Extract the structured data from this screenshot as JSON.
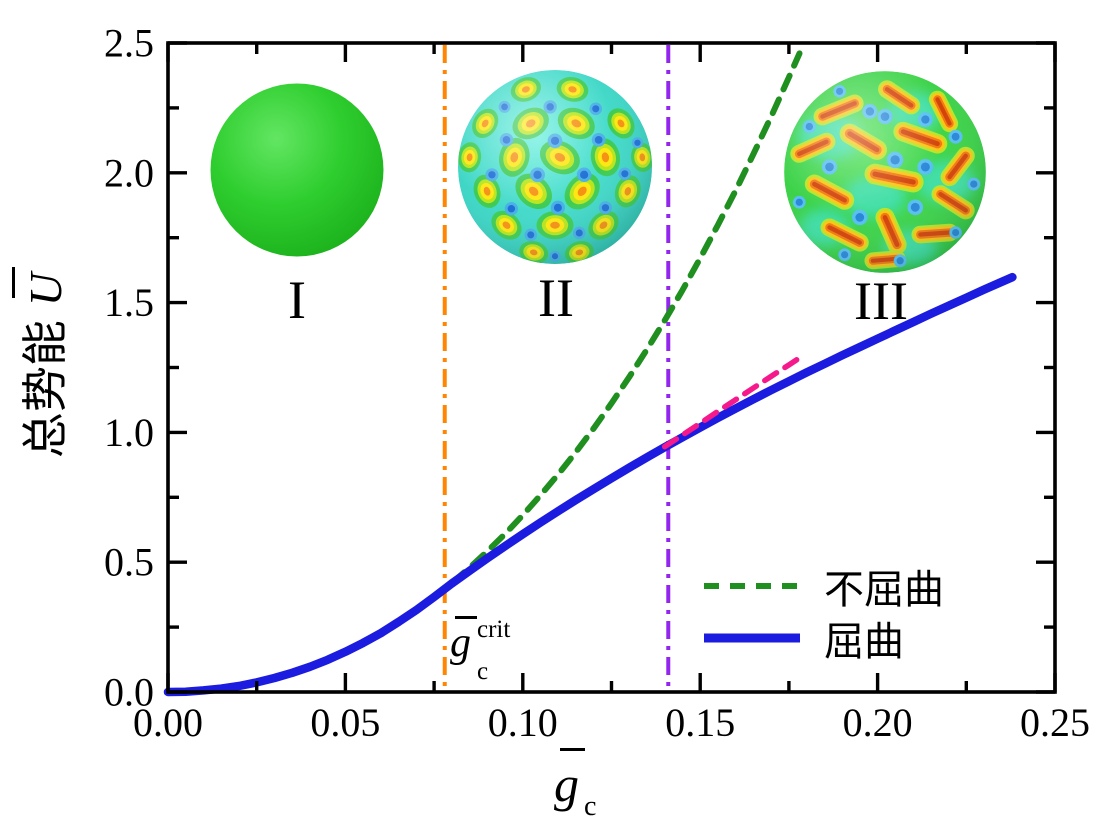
{
  "figure": {
    "background": "#ffffff"
  },
  "axes": {
    "y_label_cn": "总势能",
    "y_label_symbol": "U",
    "x_label_symbol": "g",
    "x_label_sub": "c"
  },
  "annotations": {
    "crit": {
      "base": "g",
      "sub": "c",
      "sup": "crit"
    }
  },
  "insets": [
    {
      "label": "I",
      "description": "smooth-green-sphere"
    },
    {
      "label": "II",
      "description": "hexagonal-dimple-pattern-sphere"
    },
    {
      "label": "III",
      "description": "labyrinth-stripe-pattern-sphere"
    }
  ],
  "legend": {
    "entries": [
      {
        "label": "不屈曲",
        "color": "#1f8f1f",
        "line_style": "dashed"
      },
      {
        "label": "屈曲",
        "color": "#1c1ce0",
        "line_style": "solid"
      }
    ]
  },
  "chart_data": {
    "type": "line",
    "title": "",
    "xlabel": "ḡc",
    "ylabel": "总势能 Ū",
    "xlim": [
      0,
      0.25
    ],
    "ylim": [
      0,
      2.5
    ],
    "grid": false,
    "legend_position": "inside lower right",
    "x_major_ticks": {
      "values": [
        0,
        0.05,
        0.1,
        0.15,
        0.2,
        0.25
      ],
      "labels": [
        "0.00",
        "0.05",
        "0.10",
        "0.15",
        "0.20",
        "0.25"
      ]
    },
    "x_minor_ticks": [
      0.025,
      0.075,
      0.125,
      0.175,
      0.225
    ],
    "y_major_ticks": {
      "values": [
        0,
        0.5,
        1.0,
        1.5,
        2.0,
        2.5
      ],
      "labels": [
        "0.0",
        "0.5",
        "1.0",
        "1.5",
        "2.0",
        "2.5"
      ]
    },
    "y_minor_ticks": [
      0.25,
      0.75,
      1.25,
      1.75,
      2.25
    ],
    "vlines": [
      {
        "x": 0.078,
        "color": "#ff8603",
        "style": "dash-dot",
        "label": "ḡc crit"
      },
      {
        "x": 0.141,
        "color": "#9326ed",
        "style": "dash-dot",
        "label": ""
      }
    ],
    "series": [
      {
        "name": "不屈曲",
        "style": "dashed",
        "color": "#1f8f1f",
        "width": 6,
        "dash": "15 11",
        "points": [
          [
            0,
            0
          ],
          [
            0.005,
            0.001
          ],
          [
            0.01,
            0.006
          ],
          [
            0.015,
            0.013
          ],
          [
            0.02,
            0.023
          ],
          [
            0.025,
            0.037
          ],
          [
            0.03,
            0.054
          ],
          [
            0.035,
            0.074
          ],
          [
            0.04,
            0.097
          ],
          [
            0.045,
            0.124
          ],
          [
            0.05,
            0.155
          ],
          [
            0.055,
            0.189
          ],
          [
            0.06,
            0.227
          ],
          [
            0.065,
            0.27
          ],
          [
            0.07,
            0.316
          ],
          [
            0.075,
            0.366
          ],
          [
            0.08,
            0.42
          ],
          [
            0.085,
            0.479
          ],
          [
            0.09,
            0.542
          ],
          [
            0.095,
            0.609
          ],
          [
            0.1,
            0.681
          ],
          [
            0.105,
            0.758
          ],
          [
            0.11,
            0.839
          ],
          [
            0.115,
            0.925
          ],
          [
            0.12,
            1.016
          ],
          [
            0.125,
            1.112
          ],
          [
            0.13,
            1.213
          ],
          [
            0.135,
            1.32
          ],
          [
            0.14,
            1.431
          ],
          [
            0.145,
            1.548
          ],
          [
            0.15,
            1.671
          ],
          [
            0.155,
            1.799
          ],
          [
            0.16,
            1.932
          ],
          [
            0.165,
            2.072
          ],
          [
            0.17,
            2.217
          ],
          [
            0.175,
            2.368
          ],
          [
            0.178,
            2.46
          ]
        ]
      },
      {
        "name": "屈曲",
        "style": "solid",
        "color": "#1c1ce0",
        "width": 8.5,
        "dash": "",
        "points": [
          [
            0,
            0
          ],
          [
            0.005,
            0.001
          ],
          [
            0.01,
            0.006
          ],
          [
            0.015,
            0.013
          ],
          [
            0.02,
            0.023
          ],
          [
            0.025,
            0.037
          ],
          [
            0.03,
            0.054
          ],
          [
            0.035,
            0.074
          ],
          [
            0.04,
            0.097
          ],
          [
            0.045,
            0.124
          ],
          [
            0.05,
            0.155
          ],
          [
            0.055,
            0.189
          ],
          [
            0.06,
            0.227
          ],
          [
            0.065,
            0.27
          ],
          [
            0.07,
            0.316
          ],
          [
            0.075,
            0.366
          ],
          [
            0.08,
            0.418
          ],
          [
            0.085,
            0.467
          ],
          [
            0.09,
            0.515
          ],
          [
            0.095,
            0.562
          ],
          [
            0.1,
            0.608
          ],
          [
            0.105,
            0.653
          ],
          [
            0.11,
            0.697
          ],
          [
            0.115,
            0.74
          ],
          [
            0.12,
            0.782
          ],
          [
            0.125,
            0.823
          ],
          [
            0.13,
            0.864
          ],
          [
            0.135,
            0.904
          ],
          [
            0.14,
            0.943
          ],
          [
            0.145,
            0.981
          ],
          [
            0.15,
            1.019
          ],
          [
            0.155,
            1.056
          ],
          [
            0.16,
            1.092
          ],
          [
            0.165,
            1.128
          ],
          [
            0.17,
            1.163
          ],
          [
            0.175,
            1.197
          ],
          [
            0.18,
            1.231
          ],
          [
            0.185,
            1.264
          ],
          [
            0.19,
            1.297
          ],
          [
            0.195,
            1.329
          ],
          [
            0.2,
            1.361
          ],
          [
            0.205,
            1.393
          ],
          [
            0.21,
            1.425
          ],
          [
            0.215,
            1.457
          ],
          [
            0.22,
            1.488
          ],
          [
            0.225,
            1.519
          ],
          [
            0.23,
            1.55
          ],
          [
            0.235,
            1.58
          ],
          [
            0.238,
            1.598
          ]
        ]
      },
      {
        "name": "pink-dashed-extrapolation",
        "style": "dashed",
        "color": "#f5198c",
        "width": 5.5,
        "dash": "14 10",
        "points": [
          [
            0.14,
            0.945
          ],
          [
            0.145,
            0.99
          ],
          [
            0.15,
            1.035
          ],
          [
            0.155,
            1.081
          ],
          [
            0.16,
            1.126
          ],
          [
            0.165,
            1.171
          ],
          [
            0.17,
            1.216
          ],
          [
            0.175,
            1.26
          ],
          [
            0.178,
            1.287
          ]
        ]
      }
    ]
  }
}
